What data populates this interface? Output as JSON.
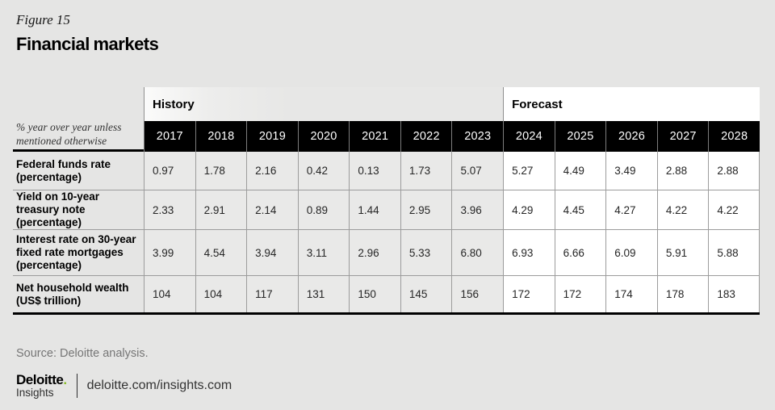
{
  "figure": {
    "label": "Figure 15",
    "title": "Financial markets"
  },
  "table": {
    "corner_note": "% year over year unless mentioned otherwise",
    "history_label": "History",
    "forecast_label": "Forecast",
    "years_history": [
      "2017",
      "2018",
      "2019",
      "2020",
      "2021",
      "2022",
      "2023"
    ],
    "years_forecast": [
      "2024",
      "2025",
      "2026",
      "2027",
      "2028"
    ],
    "rows": [
      {
        "label": "Federal funds rate (percentage)",
        "values": [
          "0.97",
          "1.78",
          "2.16",
          "0.42",
          "0.13",
          "1.73",
          "5.07",
          "5.27",
          "4.49",
          "3.49",
          "2.88",
          "2.88"
        ]
      },
      {
        "label": "Yield on 10-year treasury note (percentage)",
        "values": [
          "2.33",
          "2.91",
          "2.14",
          "0.89",
          "1.44",
          "2.95",
          "3.96",
          "4.29",
          "4.45",
          "4.27",
          "4.22",
          "4.22"
        ]
      },
      {
        "label": "Interest rate on 30-year fixed rate mortgages (percentage)",
        "values": [
          "3.99",
          "4.54",
          "3.94",
          "3.11",
          "2.96",
          "5.33",
          "6.80",
          "6.93",
          "6.66",
          "6.09",
          "5.91",
          "5.88"
        ]
      },
      {
        "label": "Net household wealth (US$ trillion)",
        "values": [
          "104",
          "104",
          "117",
          "131",
          "150",
          "145",
          "156",
          "172",
          "172",
          "174",
          "178",
          "183"
        ]
      }
    ]
  },
  "chart_data": {
    "type": "table",
    "title": "Financial markets",
    "subtitle": "% year over year unless mentioned otherwise",
    "categories": [
      "2017",
      "2018",
      "2019",
      "2020",
      "2021",
      "2022",
      "2023",
      "2024",
      "2025",
      "2026",
      "2027",
      "2028"
    ],
    "groups": [
      {
        "name": "History",
        "categories": [
          "2017",
          "2018",
          "2019",
          "2020",
          "2021",
          "2022",
          "2023"
        ]
      },
      {
        "name": "Forecast",
        "categories": [
          "2024",
          "2025",
          "2026",
          "2027",
          "2028"
        ]
      }
    ],
    "series": [
      {
        "name": "Federal funds rate (percentage)",
        "values": [
          0.97,
          1.78,
          2.16,
          0.42,
          0.13,
          1.73,
          5.07,
          5.27,
          4.49,
          3.49,
          2.88,
          2.88
        ]
      },
      {
        "name": "Yield on 10-year treasury note (percentage)",
        "values": [
          2.33,
          2.91,
          2.14,
          0.89,
          1.44,
          2.95,
          3.96,
          4.29,
          4.45,
          4.27,
          4.22,
          4.22
        ]
      },
      {
        "name": "Interest rate on 30-year fixed rate mortgages (percentage)",
        "values": [
          3.99,
          4.54,
          3.94,
          3.11,
          2.96,
          5.33,
          6.8,
          6.93,
          6.66,
          6.09,
          5.91,
          5.88
        ]
      },
      {
        "name": "Net household wealth (US$ trillion)",
        "values": [
          104,
          104,
          117,
          131,
          150,
          145,
          156,
          172,
          172,
          174,
          178,
          183
        ]
      }
    ]
  },
  "footer": {
    "source": "Source: Deloitte analysis.",
    "logo_primary": "Deloitte",
    "logo_dot": ".",
    "logo_secondary": "Insights",
    "link": "deloitte.com/insights.com"
  },
  "colors": {
    "accent_green": "#86bc25",
    "header_bg": "#000000",
    "page_bg": "#e5e5e4",
    "forecast_bg": "#ffffff"
  }
}
